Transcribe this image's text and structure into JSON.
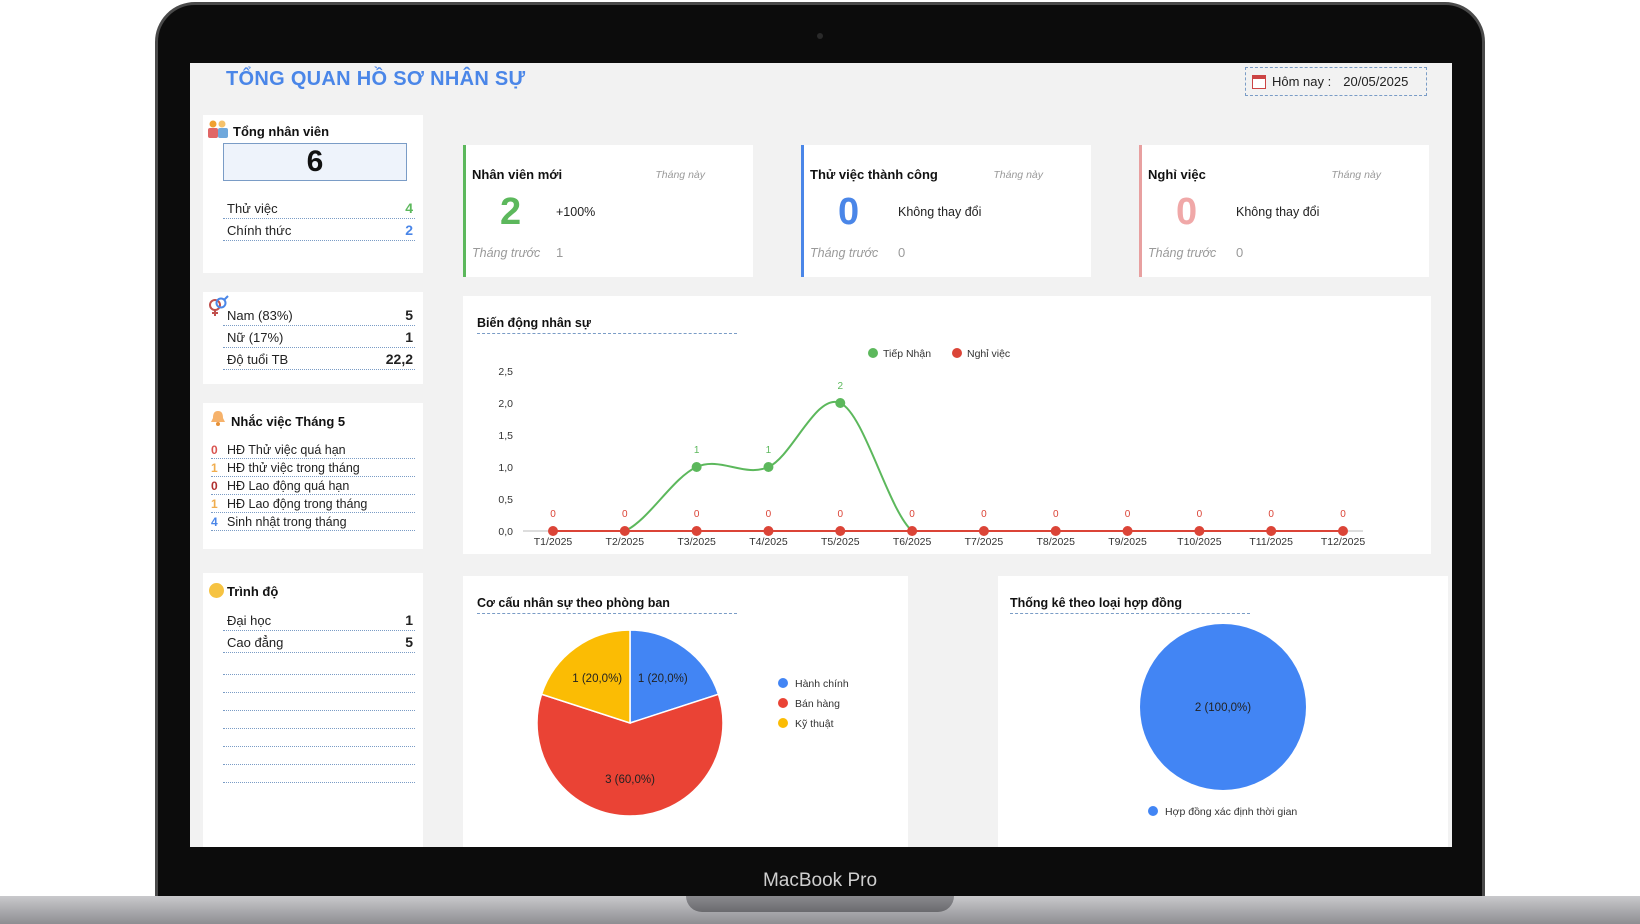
{
  "page": {
    "title": "TỔNG QUAN HỒ SƠ NHÂN SỰ",
    "date_label": "Hôm nay :",
    "date_value": "20/05/2025",
    "device_label": "MacBook Pro"
  },
  "total": {
    "label": "Tổng nhân viên",
    "value": "6",
    "rows": [
      {
        "label": "Thử việc",
        "value": "4",
        "color": "#5cb85c"
      },
      {
        "label": "Chính thức",
        "value": "2",
        "color": "#4a86e8"
      }
    ]
  },
  "gender": {
    "rows": [
      {
        "label": "Nam (83%)",
        "value": "5"
      },
      {
        "label": "Nữ (17%)",
        "value": "1"
      },
      {
        "label": "Độ tuổi TB",
        "value": "22,2"
      }
    ]
  },
  "reminders": {
    "title": "Nhắc việc Tháng 5",
    "items": [
      {
        "count": "0",
        "label": "HĐ Thử việc quá hạn",
        "color": "#d9534f"
      },
      {
        "count": "1",
        "label": "HĐ thử việc trong tháng",
        "color": "#f0ad4e"
      },
      {
        "count": "0",
        "label": "HĐ Lao động quá hạn",
        "color": "#b03030"
      },
      {
        "count": "1",
        "label": "HĐ Lao động trong tháng",
        "color": "#f0ad4e"
      },
      {
        "count": "4",
        "label": "Sinh nhật trong tháng",
        "color": "#4a86e8"
      }
    ]
  },
  "education": {
    "title": "Trình độ",
    "rows": [
      {
        "label": "Đại học",
        "value": "1"
      },
      {
        "label": "Cao đẳng",
        "value": "5"
      }
    ]
  },
  "kpis": [
    {
      "title": "Nhân viên mới",
      "month": "Tháng này",
      "value": "2",
      "delta": "+100%",
      "prev_label": "Tháng trước",
      "prev_value": "1",
      "color": "#5cb85c",
      "value_color": "#5cb85c"
    },
    {
      "title": "Thử việc thành công",
      "month": "Tháng này",
      "value": "0",
      "delta": "Không thay đổi",
      "prev_label": "Tháng trước",
      "prev_value": "0",
      "color": "#4a86e8",
      "value_color": "#4a86e8"
    },
    {
      "title": "Nghỉ việc",
      "month": "Tháng này",
      "value": "0",
      "delta": "Không thay đổi",
      "prev_label": "Tháng trước",
      "prev_value": "0",
      "color": "#e8a0a0",
      "value_color": "#f0a8a8"
    }
  ],
  "line_chart": {
    "title": "Biến động nhân sự",
    "chart_data": {
      "type": "line",
      "categories": [
        "T1/2025",
        "T2/2025",
        "T3/2025",
        "T4/2025",
        "T5/2025",
        "T6/2025",
        "T7/2025",
        "T8/2025",
        "T9/2025",
        "T10/2025",
        "T11/2025",
        "T12/2025"
      ],
      "series": [
        {
          "name": "Tiếp Nhận",
          "values": [
            0,
            0,
            1,
            1,
            2,
            0,
            0,
            0,
            0,
            0,
            0,
            0
          ],
          "color": "#5cb85c"
        },
        {
          "name": "Nghỉ việc",
          "values": [
            0,
            0,
            0,
            0,
            0,
            0,
            0,
            0,
            0,
            0,
            0,
            0
          ],
          "color": "#db4437"
        }
      ],
      "yticks": [
        "0,0",
        "0,5",
        "1,0",
        "1,5",
        "2,0",
        "2,5"
      ],
      "ylim": [
        0,
        2.5
      ],
      "legend": "top"
    }
  },
  "dept_chart": {
    "title": "Cơ cấu nhân sự theo phòng ban",
    "chart_data": {
      "type": "pie",
      "slices": [
        {
          "name": "Hành chính",
          "value": 1,
          "label": "1 (20,0%)",
          "color": "#4285f4"
        },
        {
          "name": "Bán hàng",
          "value": 3,
          "label": "3 (60,0%)",
          "color": "#ea4335"
        },
        {
          "name": "Kỹ thuật",
          "value": 1,
          "label": "1 (20,0%)",
          "color": "#fbbc04"
        }
      ],
      "legend": "right"
    }
  },
  "contract_chart": {
    "title": "Thống kê theo loại hợp đồng",
    "chart_data": {
      "type": "pie",
      "slices": [
        {
          "name": "Hợp đồng xác định thời gian",
          "value": 2,
          "label": "2 (100,0%)",
          "color": "#4285f4"
        }
      ],
      "legend": "bottom"
    }
  }
}
